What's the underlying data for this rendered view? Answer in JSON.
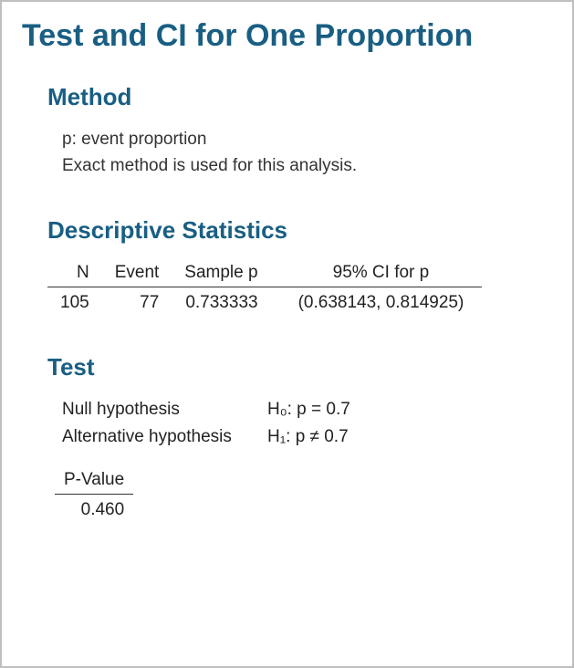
{
  "colors": {
    "title": "#195e83",
    "text": "#222222",
    "rule": "#333333",
    "border": "#bfbfbf",
    "background": "#ffffff"
  },
  "typography": {
    "family": "Segoe UI",
    "title_size_pt": 26,
    "section_title_size_pt": 20,
    "body_size_pt": 14
  },
  "page": {
    "title": "Test and CI for One Proportion"
  },
  "method": {
    "heading": "Method",
    "line1": "p: event proportion",
    "line2": "Exact method is used for this analysis."
  },
  "descriptive": {
    "heading": "Descriptive Statistics",
    "table": {
      "type": "table",
      "columns": [
        "N",
        "Event",
        "Sample p",
        "95% CI for p"
      ],
      "alignment": [
        "right",
        "right",
        "right",
        "center"
      ],
      "rows": [
        [
          "105",
          "77",
          "0.733333",
          "(0.638143, 0.814925)"
        ]
      ]
    }
  },
  "test": {
    "heading": "Test",
    "null_label": "Null hypothesis",
    "null_value": "H₀: p = 0.7",
    "alt_label": "Alternative hypothesis",
    "alt_value": "H₁: p ≠ 0.7",
    "pvalue": {
      "label": "P-Value",
      "value": "0.460"
    }
  }
}
